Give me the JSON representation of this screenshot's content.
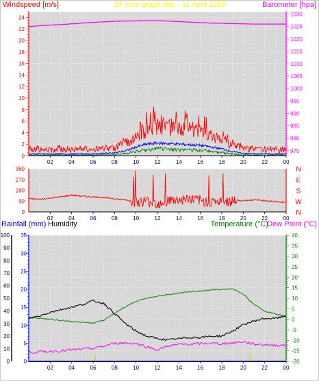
{
  "header": {
    "left_label": "Windspeed [m/s]",
    "center_label": "24 hour graph day - 11 April 2026",
    "right_label": "Barometer [hpa]"
  },
  "rainfall_header": {
    "rain_label": "Rainfall (mm)",
    "humidity_label": "Humidity",
    "temperature_label": "Temperature (°C)",
    "dewpoint_label": "Dew Point (°C)"
  },
  "colors": {
    "wind_gust": "#ff0000",
    "wind_avg": "#0000ff",
    "wind_green": "#008000",
    "barometer": "#ff00ff",
    "direction": "#ff0000",
    "humidity": "#000000",
    "temperature": "#228b22",
    "dewpoint": "#ff00ff",
    "rain": "#0000ff",
    "plot_bg": "#d8d8d8"
  },
  "x_ticks": [
    "02",
    "04",
    "06",
    "08",
    "10",
    "12",
    "14",
    "16",
    "18",
    "20",
    "22",
    "00"
  ],
  "chart_data": [
    {
      "type": "line",
      "name": "wind_barometer",
      "x": [
        0,
        1,
        2,
        3,
        4,
        5,
        6,
        7,
        8,
        9,
        10,
        11,
        12,
        13,
        14,
        15,
        16,
        17,
        18,
        19,
        20,
        21,
        22,
        23,
        24
      ],
      "series": [
        {
          "name": "Windspeed gust",
          "axis": "left",
          "values": [
            1.0,
            1.0,
            1.0,
            1.2,
            1.0,
            1.0,
            1.0,
            1.2,
            1.3,
            2.0,
            3.2,
            4.5,
            5.2,
            5.0,
            4.8,
            4.6,
            4.3,
            3.6,
            2.8,
            1.8,
            1.2,
            1.0,
            1.0,
            1.0,
            1.0
          ]
        },
        {
          "name": "Windspeed average",
          "axis": "left",
          "values": [
            0.3,
            0.3,
            0.3,
            0.3,
            0.3,
            0.3,
            0.3,
            0.4,
            0.5,
            0.8,
            1.5,
            2.0,
            2.2,
            2.1,
            2.0,
            1.9,
            1.8,
            1.5,
            1.2,
            0.7,
            0.4,
            0.3,
            0.3,
            0.3,
            0.3
          ]
        },
        {
          "name": "Wind lull",
          "axis": "left",
          "values": [
            0.1,
            0.1,
            0.1,
            0.1,
            0.1,
            0.1,
            0.1,
            0.1,
            0.2,
            0.4,
            0.7,
            1.0,
            1.2,
            1.1,
            1.0,
            1.0,
            0.9,
            0.7,
            0.5,
            0.3,
            0.1,
            0.1,
            0.1,
            0.1,
            0.1
          ]
        },
        {
          "name": "Barometer",
          "axis": "right",
          "values": [
            1025.0,
            1025.3,
            1025.6,
            1025.8,
            1026.1,
            1026.4,
            1026.7,
            1026.9,
            1027.1,
            1027.2,
            1027.3,
            1027.4,
            1027.4,
            1027.2,
            1027.0,
            1026.8,
            1026.6,
            1026.4,
            1026.3,
            1026.2,
            1026.1,
            1026.0,
            1026.0,
            1026.0,
            1026.0
          ]
        }
      ],
      "y_left": {
        "min": 0,
        "max": 25,
        "ticks": [
          0,
          2,
          4,
          6,
          8,
          10,
          12,
          14,
          16,
          18,
          20,
          22,
          24
        ]
      },
      "y_right": {
        "min": 973,
        "max": 1031,
        "ticks": [
          975,
          980,
          985,
          990,
          995,
          1000,
          1005,
          1010,
          1015,
          1020,
          1025,
          1030
        ]
      }
    },
    {
      "type": "line",
      "name": "wind_direction",
      "x": [
        0,
        1,
        2,
        3,
        4,
        5,
        6,
        7,
        8,
        9,
        10,
        11,
        12,
        13,
        14,
        15,
        16,
        17,
        18,
        19,
        20,
        21,
        22,
        23,
        24
      ],
      "series": [
        {
          "name": "Direction",
          "values": [
            110,
            105,
            115,
            125,
            140,
            130,
            125,
            120,
            110,
            100,
            80,
            90,
            70,
            95,
            100,
            110,
            90,
            85,
            80,
            90,
            95,
            100,
            95,
            85,
            80
          ]
        }
      ],
      "y_left": {
        "min": 0,
        "max": 360,
        "ticks": [
          0,
          90,
          180,
          270,
          360
        ]
      },
      "y_right_labels": [
        "N",
        "W",
        "S",
        "E",
        "N"
      ]
    },
    {
      "type": "line",
      "name": "rain_humidity_temperature",
      "x": [
        0,
        1,
        2,
        3,
        4,
        5,
        6,
        7,
        8,
        9,
        10,
        11,
        12,
        13,
        14,
        15,
        16,
        17,
        18,
        19,
        20,
        21,
        22,
        23,
        24
      ],
      "series": [
        {
          "name": "Humidity",
          "axis": "left",
          "values": [
            34,
            36,
            39,
            41,
            43,
            45,
            48,
            46,
            38,
            30,
            24,
            20,
            18,
            17,
            18,
            19,
            19,
            20,
            20,
            24,
            29,
            32,
            34,
            34,
            36
          ]
        },
        {
          "name": "Temperature",
          "axis": "right",
          "values": [
            1,
            0.5,
            0,
            -0.5,
            -1,
            -1.5,
            -1.8,
            -0.5,
            3,
            6,
            8.5,
            10,
            11,
            11.8,
            12.4,
            13,
            13.5,
            14,
            14.2,
            14.5,
            12,
            7,
            4,
            2.5,
            1.5
          ]
        },
        {
          "name": "Dew Point",
          "axis": "right",
          "values": [
            -15.8,
            -15.5,
            -15.2,
            -15,
            -14.6,
            -14.2,
            -13.8,
            -12.8,
            -11.4,
            -11.2,
            -11.5,
            -13,
            -14.6,
            -12.6,
            -12,
            -11.8,
            -11.6,
            -11.4,
            -11.6,
            -11.2,
            -10.6,
            -11.8,
            -12,
            -12.3,
            -12.5
          ]
        },
        {
          "name": "Rainfall",
          "axis": "rain",
          "values": [
            0,
            0,
            0,
            0,
            0,
            0,
            0,
            0,
            0,
            0,
            0,
            0,
            0,
            0,
            0,
            0,
            0,
            0,
            0,
            0,
            0,
            0,
            0,
            0,
            0
          ]
        }
      ],
      "y_left": {
        "min": 0,
        "max": 100,
        "ticks": [
          0,
          10,
          20,
          30,
          40,
          50,
          60,
          70,
          80,
          90,
          100
        ]
      },
      "y_rain": {
        "min": 0,
        "max": 35,
        "ticks": [
          0,
          5,
          10,
          15,
          20,
          25,
          30,
          35
        ]
      },
      "y_right": {
        "min": -20,
        "max": 40,
        "ticks": [
          -20,
          -15,
          -10,
          -5,
          0,
          5,
          10,
          15,
          20,
          25,
          30,
          35,
          40
        ]
      }
    }
  ]
}
